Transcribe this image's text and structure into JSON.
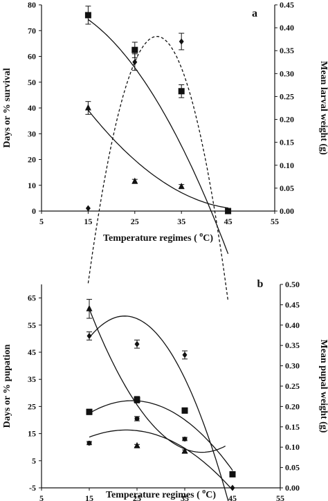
{
  "chart_data": [
    {
      "type": "scatter",
      "panel_label": "a",
      "xlabel": "Temperature regimes (°C)",
      "xlabel_parts": [
        "Temperature regimes ( ",
        "o",
        "C)"
      ],
      "ylabel": "Days or % survival",
      "y2label": "Mean larval weight (g)",
      "xlim": [
        5,
        55
      ],
      "ylim": [
        0,
        80
      ],
      "y2lim": [
        0,
        0.45
      ],
      "x_ticks": [
        5,
        15,
        25,
        35,
        45,
        55
      ],
      "y_ticks": [
        0,
        10,
        20,
        30,
        40,
        50,
        60,
        70,
        80
      ],
      "y2_ticks": [
        "0.00",
        "0.05",
        "0.10",
        "0.15",
        "0.20",
        "0.25",
        "0.30",
        "0.35",
        "0.40",
        "0.45"
      ],
      "series": [
        {
          "marker": "square",
          "axis": "left",
          "x": [
            15,
            25,
            35,
            45
          ],
          "y": [
            76,
            62.5,
            46.5,
            0
          ],
          "err": [
            3.5,
            3,
            2.5,
            0
          ],
          "fit": {
            "style": "solid",
            "x": [
              15,
              45
            ],
            "coef": [
              80.6,
              0.45,
              -0.058
            ]
          }
        },
        {
          "marker": "triangle",
          "axis": "left",
          "x": [
            15,
            25,
            35,
            45
          ],
          "y": [
            40,
            11.5,
            9.5,
            0
          ],
          "err": [
            2.5,
            0.8,
            0.8,
            0
          ],
          "fit": {
            "style": "solid",
            "x": [
              15,
              45
            ],
            "coef": [
              80.74,
              -3.275,
              0.0335
            ]
          }
        },
        {
          "marker": "diamond",
          "axis": "right",
          "x": [
            15,
            25,
            35,
            45
          ],
          "y": [
            0.006,
            0.325,
            0.37,
            0.0
          ],
          "err": [
            0,
            0.018,
            0.018,
            0
          ],
          "fit": {
            "style": "dashed",
            "x": [
              15,
              45
            ],
            "coef": [
              -1.812,
              0.1475,
              -0.00248
            ]
          }
        }
      ]
    },
    {
      "type": "scatter",
      "panel_label": "b",
      "xlabel": "Temperature regimes (°C)",
      "xlabel_parts": [
        "Temperature regimes ( ",
        "o",
        "C)"
      ],
      "ylabel": "Days or % pupation",
      "y2label": "Mean pupal weight (g)",
      "xlim": [
        5,
        55
      ],
      "ylim": [
        -5,
        70
      ],
      "y2lim": [
        0,
        0.5
      ],
      "x_ticks": [
        5,
        15,
        25,
        35,
        45,
        55
      ],
      "y_ticks": [
        -5,
        5,
        15,
        25,
        35,
        45,
        55,
        65
      ],
      "y2_ticks": [
        "0.00",
        "0.05",
        "0.10",
        "0.15",
        "0.20",
        "0.25",
        "0.30",
        "0.35",
        "0.40",
        "0.45",
        "0.50"
      ],
      "series": [
        {
          "marker": "triangle",
          "axis": "left",
          "x": [
            15,
            25,
            35,
            45
          ],
          "y": [
            61,
            10.5,
            8.5,
            0
          ],
          "err": [
            3.5,
            0.5,
            0.5,
            0
          ],
          "fit": {
            "style": "solid",
            "x": [
              15,
              43.5
            ],
            "coef": [
              149.5,
              -7.33,
              0.095
            ]
          }
        },
        {
          "marker": "diamond",
          "axis": "left",
          "x": [
            15,
            25,
            35,
            45
          ],
          "y": [
            51,
            48,
            44,
            -5
          ],
          "err": [
            1.5,
            1.5,
            1.5,
            0
          ],
          "fit": {
            "style": "solid",
            "x": [
              15,
              45
            ],
            "coef": [
              -14.5,
              6.5,
              -0.145
            ]
          }
        },
        {
          "marker": "square",
          "axis": "left",
          "x": [
            15,
            25,
            35,
            45
          ],
          "y": [
            23,
            27.5,
            23.5,
            0
          ],
          "err": [
            1,
            1.2,
            1,
            0
          ],
          "fit": {
            "style": "solid",
            "x": [
              15,
              45
            ],
            "coef": [
              -6.17,
              2.78,
              -0.058
            ]
          }
        },
        {
          "marker": "circle",
          "axis": "left",
          "x": [
            15,
            25,
            35,
            45
          ],
          "y": [
            11.5,
            20.5,
            13,
            0
          ],
          "err": [
            0.6,
            0.8,
            0.6,
            0
          ],
          "fit": {
            "style": "solid",
            "x": [
              15,
              45
            ],
            "coef": [
              -6.6,
              2.02,
              -0.0445
            ]
          }
        }
      ]
    }
  ]
}
